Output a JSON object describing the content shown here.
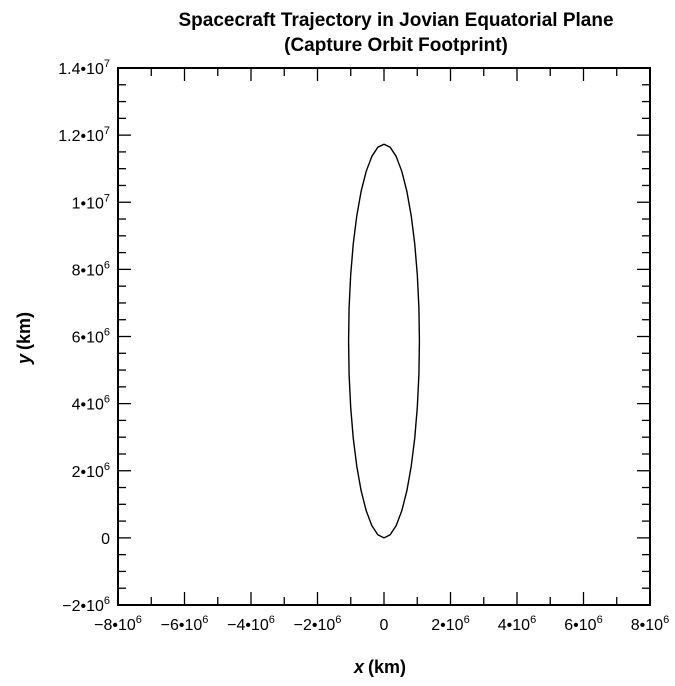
{
  "chart_data": {
    "type": "line",
    "title": "Spacecraft Trajectory in Jovian Equatorial Plane",
    "subtitle": "(Capture Orbit Footprint)",
    "xlabel_var": "x",
    "xlabel_unit": "(km)",
    "ylabel_var": "y",
    "ylabel_unit": "(km)",
    "xlim": [
      -8000000,
      8000000
    ],
    "ylim": [
      -2000000,
      14000000
    ],
    "x_major_step": 2000000,
    "x_minor_step": 1000000,
    "y_major_step": 2000000,
    "y_minor_step": 500000,
    "grid": false,
    "legend": "none",
    "x_ticks": [
      {
        "value": -8000000,
        "mantissa": "−8•10",
        "exp": "6"
      },
      {
        "value": -6000000,
        "mantissa": "−6•10",
        "exp": "6"
      },
      {
        "value": -4000000,
        "mantissa": "−4•10",
        "exp": "6"
      },
      {
        "value": -2000000,
        "mantissa": "−2•10",
        "exp": "6"
      },
      {
        "value": 0,
        "mantissa": "0",
        "exp": ""
      },
      {
        "value": 2000000,
        "mantissa": "2•10",
        "exp": "6"
      },
      {
        "value": 4000000,
        "mantissa": "4•10",
        "exp": "6"
      },
      {
        "value": 6000000,
        "mantissa": "6•10",
        "exp": "6"
      },
      {
        "value": 8000000,
        "mantissa": "8•10",
        "exp": "6"
      }
    ],
    "y_ticks": [
      {
        "value": -2000000,
        "mantissa": "−2•10",
        "exp": "6"
      },
      {
        "value": 0,
        "mantissa": "0",
        "exp": ""
      },
      {
        "value": 2000000,
        "mantissa": "2•10",
        "exp": "6"
      },
      {
        "value": 4000000,
        "mantissa": "4•10",
        "exp": "6"
      },
      {
        "value": 6000000,
        "mantissa": "6•10",
        "exp": "6"
      },
      {
        "value": 8000000,
        "mantissa": "8•10",
        "exp": "6"
      },
      {
        "value": 10000000,
        "mantissa": "1•10",
        "exp": "7"
      },
      {
        "value": 12000000,
        "mantissa": "1.2•10",
        "exp": "7"
      },
      {
        "value": 14000000,
        "mantissa": "1.4•10",
        "exp": "7"
      }
    ],
    "series": [
      {
        "color": "#000000",
        "x": [
          0,
          186000,
          366000,
          535000,
          688000,
          819000,
          925000,
          1002000,
          1050000,
          1065000,
          1050000,
          1002000,
          925000,
          819000,
          688000,
          535000,
          366000,
          186000,
          0,
          -186000,
          -366000,
          -535000,
          -688000,
          -819000,
          -925000,
          -1002000,
          -1050000,
          -1065000,
          -1050000,
          -1002000,
          -925000,
          -819000,
          -688000,
          -535000,
          -366000,
          -186000,
          0
        ],
        "y": [
          0,
          92000,
          365000,
          808000,
          1405000,
          2135000,
          2975000,
          3897000,
          4870000,
          5865000,
          6860000,
          7833000,
          8755000,
          9595000,
          10325000,
          10922000,
          11365000,
          11638000,
          11730000,
          11638000,
          11365000,
          10922000,
          10325000,
          9595000,
          8755000,
          7833000,
          6860000,
          5865000,
          4870000,
          3897000,
          2975000,
          2135000,
          1405000,
          808000,
          365000,
          92000,
          0
        ]
      }
    ]
  }
}
